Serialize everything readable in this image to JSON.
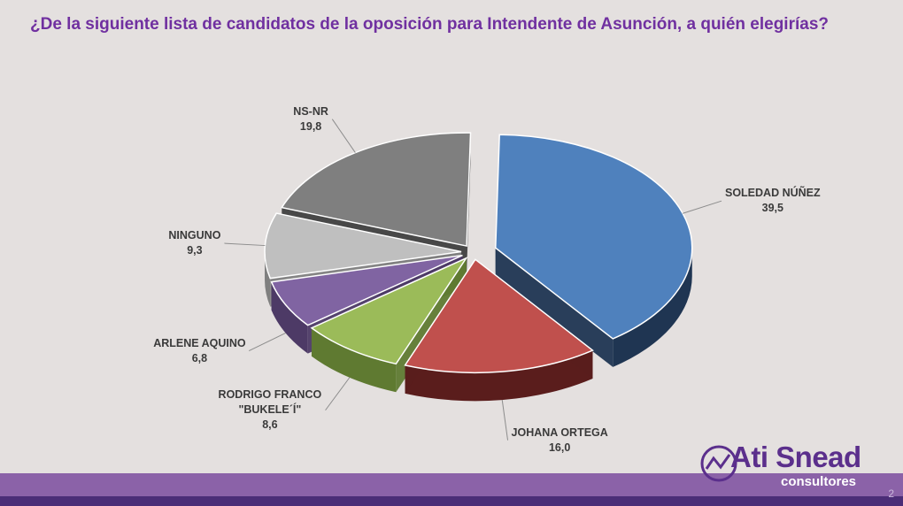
{
  "title": "¿De la siguiente lista de candidatos de la oposición para Intendente de Asunción, a quién elegirías?",
  "chart_data": {
    "type": "pie",
    "title": "¿De la siguiente lista de candidatos de la oposición para Intendente de Asunción, a quién elegirías?",
    "slices": [
      {
        "label": "SOLEDAD NÚÑEZ",
        "value": 39.5,
        "value_text": "39,5",
        "color": "#4f81bd",
        "side": "#1f3552"
      },
      {
        "label": "JOHANA ORTEGA",
        "value": 16.0,
        "value_text": "16,0",
        "color": "#c0504d",
        "side": "#5a1d1c"
      },
      {
        "label": "RODRIGO FRANCO \"BUKELE´Í\"",
        "label_lines": [
          "RODRIGO FRANCO",
          "\"BUKELE´Í\""
        ],
        "value": 8.6,
        "value_text": "8,6",
        "color": "#9bbb59",
        "side": "#5f7a31"
      },
      {
        "label": "ARLENE AQUINO",
        "value": 6.8,
        "value_text": "6,8",
        "color": "#8064a2",
        "side": "#4d3a66"
      },
      {
        "label": "NINGUNO",
        "value": 9.3,
        "value_text": "9,3",
        "color": "#bfbfbf",
        "side": "#7f7f7f"
      },
      {
        "label": "NS-NR",
        "value": 19.8,
        "value_text": "19,8",
        "color": "#7f7f7f",
        "side": "#3f3f3f"
      }
    ]
  },
  "logo": {
    "name": "Ati Snead",
    "sub": "consultores"
  },
  "page_number": "2"
}
